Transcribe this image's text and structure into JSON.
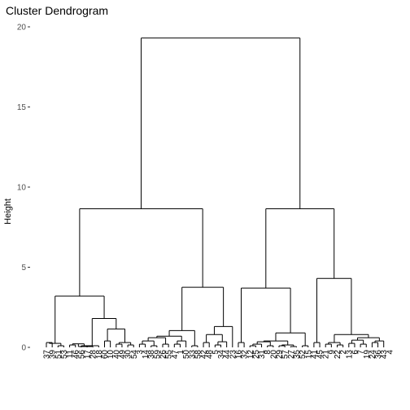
{
  "chart_data": {
    "type": "dendrogram",
    "title": "Cluster Dendrogram",
    "xlabel": "",
    "ylabel": "Height",
    "ylim": [
      0,
      20
    ],
    "yticks": [
      0,
      5,
      10,
      15,
      20
    ],
    "grid": false,
    "leaves": [
      "37",
      "39",
      "51",
      "53",
      "11",
      "46",
      "56",
      "17",
      "28",
      "18",
      "60",
      "10",
      "40",
      "49",
      "30",
      "54",
      "3",
      "14",
      "38",
      "59",
      "26",
      "55",
      "47",
      "1",
      "50",
      "33",
      "58",
      "42",
      "48",
      "5",
      "34",
      "44",
      "23",
      "16",
      "32",
      "12",
      "25",
      "31",
      "8",
      "20",
      "29",
      "57",
      "27",
      "35",
      "52",
      "15",
      "41",
      "45",
      "21",
      "9",
      "22",
      "2",
      "13",
      "6",
      "7",
      "19",
      "24",
      "36",
      "43",
      "4"
    ],
    "merges": [
      {
        "a": 0,
        "b": 1,
        "h": 0.3
      },
      {
        "a": 2,
        "b": 3,
        "h": 0.1
      },
      {
        "a": "c0",
        "b": "c1",
        "h": 0.25
      },
      {
        "a": 4,
        "b": 5,
        "h": 0.15
      },
      {
        "a": 6,
        "b": 7,
        "h": 0.1
      },
      {
        "a": "c3",
        "b": "c4",
        "h": 0.22
      },
      {
        "a": "c5",
        "b": 8,
        "h": 0.05
      },
      {
        "a": 9,
        "b": "c6",
        "h": 0.1
      },
      {
        "a": 10,
        "b": 11,
        "h": 0.4
      },
      {
        "a": 12,
        "b": 13,
        "h": 0.2
      },
      {
        "a": 14,
        "b": 15,
        "h": 0.15
      },
      {
        "a": "c9",
        "b": "c10",
        "h": 0.3
      },
      {
        "a": "c8",
        "b": "c11",
        "h": 1.15
      },
      {
        "a": "c7",
        "b": "c12",
        "h": 1.8
      },
      {
        "a": "c2",
        "b": "c13",
        "h": 3.2
      },
      {
        "a": 16,
        "b": 17,
        "h": 0.2
      },
      {
        "a": 18,
        "b": 19,
        "h": 0.1
      },
      {
        "a": "c15",
        "b": "c16",
        "h": 0.4
      },
      {
        "a": 20,
        "b": 21,
        "h": 0.2
      },
      {
        "a": "c17",
        "b": "c18",
        "h": 0.6
      },
      {
        "a": 22,
        "b": 23,
        "h": 0.2
      },
      {
        "a": "c20",
        "b": 24,
        "h": 0.4
      },
      {
        "a": "c19",
        "b": "c21",
        "h": 0.7
      },
      {
        "a": 25,
        "b": 26,
        "h": 0.1
      },
      {
        "a": "c22",
        "b": "c23",
        "h": 1.05
      },
      {
        "a": 27,
        "b": 28,
        "h": 0.3
      },
      {
        "a": 29,
        "b": 30,
        "h": 0.15
      },
      {
        "a": "c26",
        "b": 31,
        "h": 0.35
      },
      {
        "a": "c25",
        "b": "c27",
        "h": 0.8
      },
      {
        "a": "c28",
        "b": 32,
        "h": 1.3
      },
      {
        "a": "c24",
        "b": "c29",
        "h": 3.75
      },
      {
        "a": "c14",
        "b": "c30",
        "h": 8.65
      },
      {
        "a": 33,
        "b": 34,
        "h": 0.3
      },
      {
        "a": 35,
        "b": 36,
        "h": 0.1
      },
      {
        "a": "c33",
        "b": 37,
        "h": 0.2
      },
      {
        "a": 38,
        "b": 39,
        "h": 0.1
      },
      {
        "a": "c34",
        "b": "c35",
        "h": 0.35
      },
      {
        "a": 40,
        "b": 41,
        "h": 0.1
      },
      {
        "a": 42,
        "b": 43,
        "h": 0.05
      },
      {
        "a": "c37",
        "b": "c38",
        "h": 0.15
      },
      {
        "a": "c36",
        "b": "c39",
        "h": 0.4
      },
      {
        "a": 44,
        "b": 45,
        "h": 0.1
      },
      {
        "a": "c40",
        "b": "c41",
        "h": 0.9
      },
      {
        "a": "c32",
        "b": "c42",
        "h": 3.7
      },
      {
        "a": 46,
        "b": 47,
        "h": 0.3
      },
      {
        "a": 48,
        "b": 49,
        "h": 0.2
      },
      {
        "a": 50,
        "b": 51,
        "h": 0.15
      },
      {
        "a": "c45",
        "b": "c46",
        "h": 0.3
      },
      {
        "a": 52,
        "b": 53,
        "h": 0.25
      },
      {
        "a": 54,
        "b": 55,
        "h": 0.2
      },
      {
        "a": "c48",
        "b": "c49",
        "h": 0.45
      },
      {
        "a": 56,
        "b": 57,
        "h": 0.3
      },
      {
        "a": "c51",
        "b": 58,
        "h": 0.4
      },
      {
        "a": "c50",
        "b": "c52",
        "h": 0.6
      },
      {
        "a": "c47",
        "b": "c53",
        "h": 0.8
      },
      {
        "a": "c44",
        "b": "c54",
        "h": 4.3
      },
      {
        "a": "c43",
        "b": "c55",
        "h": 8.65
      },
      {
        "a": "c31",
        "b": "c56",
        "h": 19.3
      }
    ],
    "final_leaf": 59
  }
}
